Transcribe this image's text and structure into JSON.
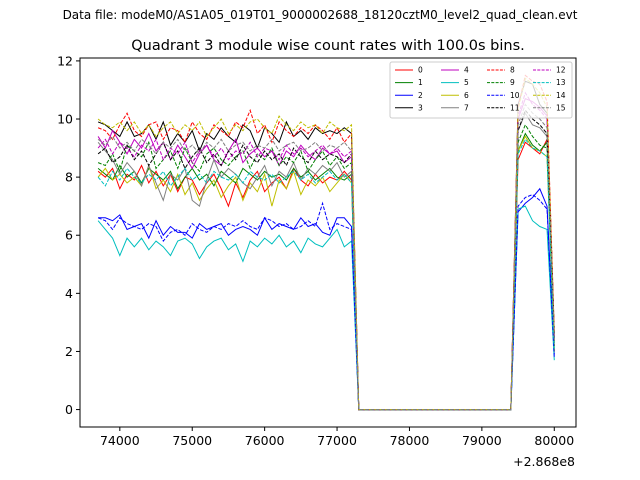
{
  "suptitle": "Data file: modeM0/AS1A05_019T01_9000002688_18120cztM0_level2_quad_clean.evt",
  "chart_data": {
    "type": "line",
    "title": "Quadrant 3 module wise count rates with 100.0s bins.",
    "xlabel": "",
    "ylabel": "",
    "x_offset_label": "+2.868e8",
    "xlim": [
      73450,
      80300
    ],
    "ylim": [
      -0.6,
      12.1
    ],
    "x_ticks": [
      74000,
      75000,
      76000,
      77000,
      78000,
      79000,
      80000
    ],
    "x_tick_labels": [
      "74000",
      "75000",
      "76000",
      "77000",
      "78000",
      "79000",
      "80000"
    ],
    "y_ticks": [
      0,
      2,
      4,
      6,
      8,
      10,
      12
    ],
    "y_tick_labels": [
      "0",
      "2",
      "4",
      "6",
      "8",
      "10",
      "12"
    ],
    "grid": false,
    "legend_position": "upper-right",
    "legend_columns": 4,
    "x": [
      73700,
      73800,
      73900,
      74000,
      74100,
      74200,
      74300,
      74400,
      74500,
      74600,
      74700,
      74800,
      74900,
      75000,
      75100,
      75200,
      75300,
      75400,
      75500,
      75600,
      75700,
      75800,
      75900,
      76000,
      76100,
      76200,
      76300,
      76400,
      76500,
      76600,
      76700,
      76800,
      76900,
      77000,
      77100,
      77200,
      77300,
      77400,
      77500,
      77600,
      77700,
      77800,
      77900,
      78000,
      78100,
      78200,
      78300,
      78400,
      78500,
      78600,
      78700,
      78800,
      78900,
      79000,
      79100,
      79200,
      79300,
      79400,
      79500,
      79600,
      79700,
      79800,
      79900,
      80000
    ],
    "series": [
      {
        "name": "0",
        "color": "#ff0000",
        "dash": "solid",
        "values": [
          8.2,
          8.0,
          8.3,
          7.6,
          8.1,
          7.9,
          8.4,
          7.8,
          8.2,
          7.7,
          8.1,
          7.5,
          8.0,
          7.9,
          7.4,
          7.8,
          8.1,
          7.6,
          7.0,
          7.8,
          7.3,
          7.9,
          8.2,
          7.5,
          7.8,
          8.0,
          7.6,
          8.3,
          7.9,
          7.7,
          8.1,
          7.8,
          8.0,
          7.9,
          8.2,
          7.9,
          0.0,
          0.0,
          0.0,
          0.0,
          0.0,
          0.0,
          0.0,
          0.0,
          0.0,
          0.0,
          0.0,
          0.0,
          0.0,
          0.0,
          0.0,
          0.0,
          0.0,
          0.0,
          0.0,
          0.0,
          0.0,
          0.0,
          8.6,
          9.2,
          9.0,
          8.8,
          9.3,
          2.2
        ]
      },
      {
        "name": "1",
        "color": "#008000",
        "dash": "solid",
        "values": [
          8.3,
          8.1,
          7.9,
          8.4,
          8.0,
          8.2,
          7.8,
          8.3,
          8.1,
          7.9,
          8.2,
          7.6,
          8.0,
          8.3,
          7.9,
          8.1,
          7.7,
          8.2,
          8.0,
          7.8,
          8.3,
          8.1,
          7.9,
          8.2,
          8.0,
          8.1,
          7.9,
          8.3,
          8.0,
          8.2,
          7.9,
          8.1,
          8.3,
          8.0,
          7.9,
          8.1,
          0.0,
          0.0,
          0.0,
          0.0,
          0.0,
          0.0,
          0.0,
          0.0,
          0.0,
          0.0,
          0.0,
          0.0,
          0.0,
          0.0,
          0.0,
          0.0,
          0.0,
          0.0,
          0.0,
          0.0,
          0.0,
          0.0,
          8.9,
          9.5,
          9.1,
          8.9,
          9.2,
          2.0
        ]
      },
      {
        "name": "2",
        "color": "#0000ff",
        "dash": "solid",
        "values": [
          6.6,
          6.6,
          6.5,
          6.7,
          6.2,
          6.3,
          6.4,
          5.9,
          6.5,
          6.0,
          6.3,
          6.1,
          6.1,
          5.9,
          6.4,
          6.2,
          6.3,
          6.4,
          6.0,
          6.2,
          6.3,
          6.2,
          6.0,
          6.6,
          6.2,
          6.4,
          6.3,
          6.2,
          6.6,
          6.3,
          6.4,
          6.1,
          6.0,
          6.6,
          6.6,
          6.3,
          0.0,
          0.0,
          0.0,
          0.0,
          0.0,
          0.0,
          0.0,
          0.0,
          0.0,
          0.0,
          0.0,
          0.0,
          0.0,
          0.0,
          0.0,
          0.0,
          0.0,
          0.0,
          0.0,
          0.0,
          0.0,
          0.0,
          6.8,
          7.1,
          7.3,
          7.6,
          7.0,
          1.9
        ]
      },
      {
        "name": "3",
        "color": "#000000",
        "dash": "solid",
        "values": [
          9.9,
          9.8,
          9.6,
          9.4,
          9.9,
          9.4,
          9.5,
          9.8,
          9.3,
          9.9,
          9.1,
          9.5,
          9.2,
          9.6,
          8.9,
          9.5,
          9.3,
          9.7,
          9.4,
          9.2,
          9.8,
          9.6,
          9.0,
          9.7,
          9.5,
          9.2,
          9.9,
          9.4,
          9.6,
          9.3,
          9.7,
          9.5,
          9.6,
          9.5,
          9.7,
          9.5,
          0.0,
          0.0,
          0.0,
          0.0,
          0.0,
          0.0,
          0.0,
          0.0,
          0.0,
          0.0,
          0.0,
          0.0,
          0.0,
          0.0,
          0.0,
          0.0,
          0.0,
          0.0,
          0.0,
          0.0,
          0.0,
          0.0,
          10.5,
          11.3,
          11.2,
          10.5,
          10.2,
          2.6
        ]
      },
      {
        "name": "4",
        "color": "#bf00bf",
        "dash": "solid",
        "values": [
          9.4,
          9.0,
          9.6,
          9.2,
          8.8,
          9.3,
          9.0,
          9.5,
          8.9,
          9.2,
          8.6,
          9.1,
          8.7,
          8.3,
          8.8,
          9.1,
          8.6,
          8.4,
          8.9,
          9.3,
          8.5,
          8.8,
          9.0,
          8.7,
          8.9,
          8.4,
          8.9,
          8.7,
          9.1,
          8.8,
          8.6,
          9.0,
          8.8,
          8.9,
          8.5,
          8.7,
          0.0,
          0.0,
          0.0,
          0.0,
          0.0,
          0.0,
          0.0,
          0.0,
          0.0,
          0.0,
          0.0,
          0.0,
          0.0,
          0.0,
          0.0,
          0.0,
          0.0,
          0.0,
          0.0,
          0.0,
          0.0,
          0.0,
          10.0,
          10.7,
          10.6,
          10.4,
          10.1,
          2.5
        ]
      },
      {
        "name": "5",
        "color": "#00bfbf",
        "dash": "solid",
        "values": [
          6.5,
          6.2,
          5.9,
          5.3,
          5.9,
          5.6,
          5.9,
          5.5,
          5.8,
          5.6,
          5.3,
          5.8,
          5.9,
          5.7,
          5.2,
          5.6,
          5.8,
          5.9,
          5.5,
          5.7,
          5.1,
          5.8,
          5.6,
          5.9,
          5.7,
          6.0,
          5.6,
          5.8,
          5.4,
          5.9,
          5.7,
          5.6,
          5.9,
          6.2,
          5.6,
          5.8,
          0.0,
          0.0,
          0.0,
          0.0,
          0.0,
          0.0,
          0.0,
          0.0,
          0.0,
          0.0,
          0.0,
          0.0,
          0.0,
          0.0,
          0.0,
          0.0,
          0.0,
          0.0,
          0.0,
          0.0,
          0.0,
          0.0,
          6.9,
          7.0,
          6.5,
          6.3,
          6.2,
          1.7
        ]
      },
      {
        "name": "6",
        "color": "#bfbf00",
        "dash": "solid",
        "values": [
          8.0,
          8.3,
          7.9,
          8.1,
          7.8,
          8.0,
          7.7,
          8.4,
          7.6,
          7.9,
          7.5,
          8.1,
          7.4,
          7.8,
          7.2,
          7.6,
          7.9,
          7.3,
          7.7,
          8.0,
          7.2,
          7.8,
          7.5,
          8.1,
          7.0,
          7.9,
          7.6,
          8.2,
          7.4,
          7.9,
          7.7,
          8.0,
          7.5,
          7.8,
          8.1,
          7.8,
          0.0,
          0.0,
          0.0,
          0.0,
          0.0,
          0.0,
          0.0,
          0.0,
          0.0,
          0.0,
          0.0,
          0.0,
          0.0,
          0.0,
          0.0,
          0.0,
          0.0,
          0.0,
          0.0,
          0.0,
          0.0,
          0.0,
          8.9,
          9.4,
          9.0,
          8.9,
          8.7,
          2.0
        ]
      },
      {
        "name": "7",
        "color": "#808080",
        "dash": "solid",
        "values": [
          9.2,
          8.9,
          8.6,
          8.1,
          8.5,
          8.2,
          7.7,
          8.4,
          7.8,
          7.2,
          8.1,
          7.9,
          8.3,
          7.2,
          7.0,
          7.9,
          8.6,
          8.0,
          8.3,
          8.1,
          7.8,
          7.6,
          8.0,
          8.4,
          7.7,
          8.2,
          8.0,
          8.5,
          7.9,
          8.3,
          8.1,
          8.4,
          8.2,
          8.5,
          8.0,
          8.2,
          0.0,
          0.0,
          0.0,
          0.0,
          0.0,
          0.0,
          0.0,
          0.0,
          0.0,
          0.0,
          0.0,
          0.0,
          0.0,
          0.0,
          0.0,
          0.0,
          0.0,
          0.0,
          0.0,
          0.0,
          0.0,
          0.0,
          9.6,
          10.2,
          9.8,
          9.7,
          9.4,
          2.3
        ]
      },
      {
        "name": "8",
        "color": "#ff0000",
        "dash": "dashed",
        "values": [
          9.7,
          9.6,
          9.3,
          9.8,
          10.2,
          9.6,
          9.4,
          9.8,
          9.9,
          9.3,
          9.7,
          9.6,
          9.2,
          9.9,
          9.5,
          9.3,
          9.8,
          9.6,
          9.4,
          9.9,
          9.7,
          10.3,
          9.5,
          9.8,
          9.2,
          9.9,
          9.6,
          9.4,
          9.7,
          9.5,
          9.8,
          9.6,
          9.3,
          9.7,
          9.2,
          9.5,
          0.0,
          0.0,
          0.0,
          0.0,
          0.0,
          0.0,
          0.0,
          0.0,
          0.0,
          0.0,
          0.0,
          0.0,
          0.0,
          0.0,
          0.0,
          0.0,
          0.0,
          0.0,
          0.0,
          0.0,
          0.0,
          0.0,
          10.4,
          11.5,
          11.3,
          11.2,
          10.6,
          2.7
        ]
      },
      {
        "name": "9",
        "color": "#008000",
        "dash": "dashed",
        "values": [
          8.5,
          8.4,
          8.8,
          8.2,
          9.1,
          8.9,
          8.7,
          9.2,
          8.3,
          8.6,
          8.9,
          8.3,
          9.0,
          8.5,
          8.2,
          8.8,
          9.0,
          8.6,
          8.4,
          8.7,
          8.9,
          8.3,
          8.8,
          8.6,
          9.0,
          8.4,
          8.7,
          8.5,
          8.9,
          8.2,
          8.6,
          8.9,
          8.4,
          8.7,
          8.3,
          8.5,
          0.0,
          0.0,
          0.0,
          0.0,
          0.0,
          0.0,
          0.0,
          0.0,
          0.0,
          0.0,
          0.0,
          0.0,
          0.0,
          0.0,
          0.0,
          0.0,
          0.0,
          0.0,
          0.0,
          0.0,
          0.0,
          0.0,
          9.2,
          9.8,
          9.4,
          9.1,
          9.0,
          2.2
        ]
      },
      {
        "name": "10",
        "color": "#0000ff",
        "dash": "dashed",
        "values": [
          6.6,
          6.5,
          6.2,
          6.6,
          6.4,
          6.3,
          6.2,
          6.4,
          6.3,
          5.8,
          6.1,
          6.2,
          6.0,
          6.4,
          6.2,
          6.1,
          6.3,
          6.2,
          6.4,
          6.3,
          6.5,
          6.3,
          6.2,
          6.6,
          6.5,
          6.3,
          6.4,
          6.2,
          6.3,
          6.5,
          6.3,
          7.1,
          6.2,
          6.4,
          6.3,
          6.2,
          0.0,
          0.0,
          0.0,
          0.0,
          0.0,
          0.0,
          0.0,
          0.0,
          0.0,
          0.0,
          0.0,
          0.0,
          0.0,
          0.0,
          0.0,
          0.0,
          0.0,
          0.0,
          0.0,
          0.0,
          0.0,
          0.0,
          7.0,
          7.3,
          7.4,
          7.2,
          6.9,
          1.8
        ]
      },
      {
        "name": "11",
        "color": "#000000",
        "dash": "dashed",
        "values": [
          8.8,
          9.0,
          8.5,
          8.7,
          9.1,
          8.6,
          8.9,
          8.4,
          8.8,
          9.2,
          8.6,
          8.9,
          8.3,
          8.7,
          9.0,
          8.5,
          8.8,
          8.4,
          8.9,
          8.6,
          9.1,
          8.7,
          8.5,
          8.9,
          8.6,
          8.8,
          8.4,
          9.0,
          8.7,
          8.5,
          8.9,
          8.6,
          8.8,
          8.7,
          8.5,
          8.8,
          0.0,
          0.0,
          0.0,
          0.0,
          0.0,
          0.0,
          0.0,
          0.0,
          0.0,
          0.0,
          0.0,
          0.0,
          0.0,
          0.0,
          0.0,
          0.0,
          0.0,
          0.0,
          0.0,
          0.0,
          0.0,
          0.0,
          9.6,
          10.3,
          10.0,
          9.8,
          9.5,
          2.4
        ]
      },
      {
        "name": "12",
        "color": "#bf00bf",
        "dash": "dashed",
        "values": [
          9.0,
          9.3,
          8.8,
          9.2,
          9.0,
          8.7,
          9.1,
          8.9,
          9.3,
          8.6,
          9.0,
          8.8,
          9.2,
          8.5,
          8.9,
          9.1,
          8.7,
          9.0,
          8.6,
          8.9,
          8.8,
          9.2,
          8.7,
          9.0,
          8.9,
          8.6,
          9.1,
          8.8,
          9.0,
          8.7,
          8.9,
          9.1,
          8.8,
          9.0,
          8.7,
          8.9,
          0.0,
          0.0,
          0.0,
          0.0,
          0.0,
          0.0,
          0.0,
          0.0,
          0.0,
          0.0,
          0.0,
          0.0,
          0.0,
          0.0,
          0.0,
          0.0,
          0.0,
          0.0,
          0.0,
          0.0,
          0.0,
          0.0,
          10.1,
          10.9,
          10.5,
          10.3,
          10.0,
          2.5
        ]
      },
      {
        "name": "13",
        "color": "#00bfbf",
        "dash": "dashed",
        "values": [
          8.0,
          7.7,
          8.2,
          7.9,
          8.3,
          8.0,
          7.8,
          8.1,
          7.9,
          8.2,
          7.7,
          8.0,
          8.3,
          7.9,
          8.1,
          7.8,
          8.2,
          8.0,
          7.9,
          8.1,
          7.8,
          8.2,
          8.0,
          7.9,
          8.1,
          7.8,
          8.0,
          8.2,
          7.9,
          8.1,
          7.8,
          8.0,
          8.2,
          7.9,
          8.1,
          7.8,
          0.0,
          0.0,
          0.0,
          0.0,
          0.0,
          0.0,
          0.0,
          0.0,
          0.0,
          0.0,
          0.0,
          0.0,
          0.0,
          0.0,
          0.0,
          0.0,
          0.0,
          0.0,
          0.0,
          0.0,
          0.0,
          0.0,
          8.8,
          9.3,
          9.0,
          8.9,
          8.7,
          2.1
        ]
      },
      {
        "name": "14",
        "color": "#bfbf00",
        "dash": "dashed",
        "values": [
          10.0,
          9.8,
          9.7,
          9.9,
          9.6,
          9.9,
          9.5,
          9.8,
          9.4,
          9.7,
          9.9,
          9.5,
          9.8,
          9.6,
          9.9,
          9.4,
          9.7,
          10.0,
          9.5,
          9.8,
          9.6,
          9.9,
          10.0,
          9.7,
          9.5,
          10.1,
          9.8,
          9.6,
          9.9,
          9.7,
          9.8,
          9.5,
          9.9,
          9.7,
          9.6,
          9.8,
          0.0,
          0.0,
          0.0,
          0.0,
          0.0,
          0.0,
          0.0,
          0.0,
          0.0,
          0.0,
          0.0,
          0.0,
          0.0,
          0.0,
          0.0,
          0.0,
          0.0,
          0.0,
          0.0,
          0.0,
          0.0,
          0.0,
          10.3,
          11.4,
          11.2,
          10.9,
          10.4,
          2.6
        ]
      },
      {
        "name": "15",
        "color": "#808080",
        "dash": "dashed",
        "values": [
          9.3,
          9.1,
          9.4,
          9.0,
          9.2,
          8.9,
          9.3,
          9.1,
          8.8,
          9.2,
          9.0,
          9.3,
          8.9,
          9.1,
          8.8,
          9.2,
          9.0,
          9.3,
          8.9,
          9.1,
          9.2,
          8.9,
          9.1,
          9.0,
          9.3,
          8.9,
          9.1,
          9.2,
          8.9,
          9.0,
          9.2,
          8.9,
          9.1,
          9.0,
          9.2,
          8.9,
          0.0,
          0.0,
          0.0,
          0.0,
          0.0,
          0.0,
          0.0,
          0.0,
          0.0,
          0.0,
          0.0,
          0.0,
          0.0,
          0.0,
          0.0,
          0.0,
          0.0,
          0.0,
          0.0,
          0.0,
          0.0,
          0.0,
          9.8,
          10.5,
          10.2,
          10.0,
          9.7,
          2.4
        ]
      }
    ]
  }
}
